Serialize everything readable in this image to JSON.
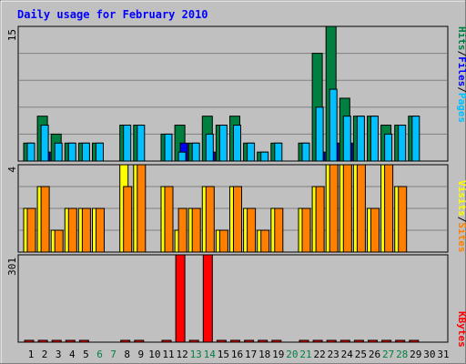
{
  "chart_data": {
    "type": "bar",
    "title": "Daily usage for February 2010",
    "days": [
      "1",
      "2",
      "3",
      "4",
      "5",
      "6",
      "7",
      "8",
      "9",
      "10",
      "11",
      "12",
      "13",
      "14",
      "15",
      "16",
      "17",
      "18",
      "19",
      "20",
      "21",
      "22",
      "23",
      "24",
      "25",
      "26",
      "27",
      "28",
      "29",
      "30",
      "31"
    ],
    "weekend_days": [
      6,
      7,
      13,
      14,
      20,
      21,
      27,
      28
    ],
    "panels": [
      {
        "id": "hits_files_pages",
        "max": 15,
        "max_label": "15",
        "gridlines": true,
        "series": [
          {
            "name": "Hits",
            "color": "#008040",
            "values": [
              2,
              5,
              3,
              2,
              2,
              2,
              0,
              4,
              4,
              0,
              3,
              4,
              2,
              5,
              4,
              5,
              2,
              1,
              2,
              0,
              2,
              12,
              15,
              7,
              5,
              5,
              4,
              4,
              5,
              0,
              0
            ]
          },
          {
            "name": "Files",
            "color": "#0000ff",
            "values": [
              0,
              1,
              0,
              0,
              0,
              0,
              0,
              0,
              0,
              0,
              0,
              2,
              0,
              1,
              0,
              0,
              0,
              0,
              0,
              0,
              0,
              1,
              2,
              2,
              0,
              0,
              0,
              0,
              0,
              0,
              0
            ]
          },
          {
            "name": "Pages",
            "color": "#00c0ff",
            "values": [
              2,
              4,
              2,
              2,
              2,
              2,
              0,
              4,
              4,
              0,
              3,
              1,
              2,
              3,
              4,
              4,
              2,
              1,
              2,
              0,
              2,
              6,
              8,
              5,
              5,
              5,
              3,
              4,
              5,
              0,
              0
            ]
          }
        ],
        "labels": [
          {
            "text": "Hits",
            "color": "#008040"
          },
          {
            "text": "/",
            "color": "#000000"
          },
          {
            "text": "Files",
            "color": "#0000ff"
          },
          {
            "text": "/",
            "color": "#000000"
          },
          {
            "text": "Pages",
            "color": "#00c0ff"
          }
        ]
      },
      {
        "id": "visits_sites",
        "max": 4,
        "max_label": "4",
        "gridlines": true,
        "series": [
          {
            "name": "Visits",
            "color": "#ffff00",
            "values": [
              2,
              3,
              1,
              2,
              2,
              2,
              0,
              4,
              4,
              0,
              3,
              1,
              2,
              3,
              1,
              3,
              2,
              1,
              2,
              0,
              2,
              3,
              4,
              4,
              4,
              2,
              4,
              3,
              0,
              0,
              0
            ]
          },
          {
            "name": "Sites",
            "color": "#ff8000",
            "values": [
              2,
              3,
              1,
              2,
              2,
              2,
              0,
              3,
              4,
              0,
              3,
              2,
              2,
              3,
              1,
              3,
              2,
              1,
              2,
              0,
              2,
              3,
              4,
              4,
              4,
              2,
              4,
              3,
              0,
              0,
              0
            ]
          }
        ],
        "labels": [
          {
            "text": "Visits",
            "color": "#ffff00"
          },
          {
            "text": "/",
            "color": "#000000"
          },
          {
            "text": "Sites",
            "color": "#ff8000"
          }
        ]
      },
      {
        "id": "kbytes",
        "max": 301,
        "max_label": "301",
        "gridlines": false,
        "series": [
          {
            "name": "KBytes",
            "color": "#ff0000",
            "values": [
              3,
              3,
              3,
              3,
              3,
              0,
              0,
              3,
              3,
              0,
              3,
              301,
              3,
              301,
              3,
              3,
              3,
              3,
              3,
              0,
              3,
              6,
              6,
              3,
              3,
              3,
              3,
              3,
              3,
              0,
              0
            ]
          }
        ],
        "labels": [
          {
            "text": "KBytes",
            "color": "#ff0000"
          }
        ]
      }
    ],
    "colors": {
      "title": "#0000ff",
      "plot_background": "#c0c0c0",
      "frame_background": "#c0c0c0",
      "gridline": "#808080",
      "weekday_tick": "#000000",
      "weekend_tick": "#008040"
    }
  }
}
